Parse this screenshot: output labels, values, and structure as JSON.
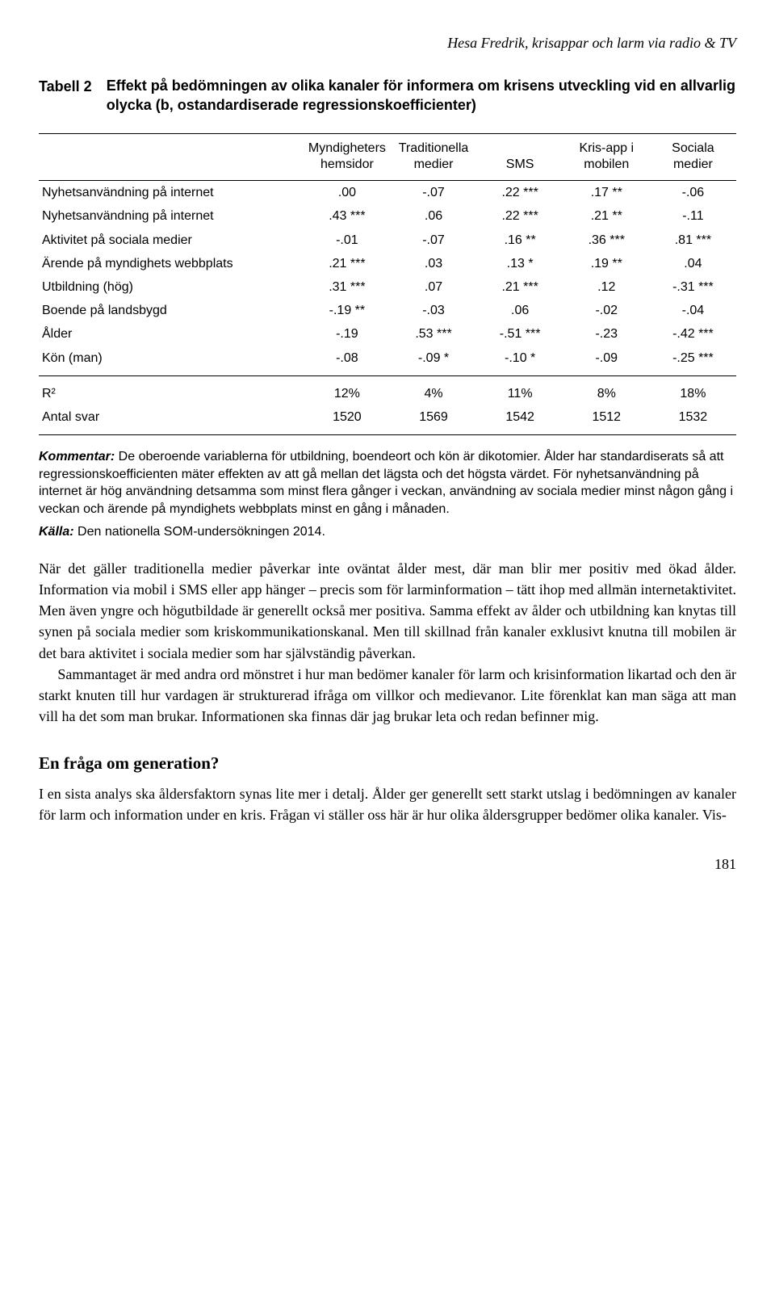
{
  "running_head": "Hesa Fredrik, krisappar och larm via radio & TV",
  "table": {
    "label": "Tabell 2",
    "title": "Effekt på bedömningen av olika kanaler för informera om krisens utveckling vid en allvarlig olycka (b, ostandardiserade regressionskoefficienter)",
    "columns": [
      "",
      "Myndigheters hemsidor",
      "Traditionella medier",
      "SMS",
      "Kris-app i mobilen",
      "Sociala medier"
    ],
    "rows": [
      [
        "Nyhetsanvändning på internet",
        ".00",
        "-.07",
        ".22 ***",
        ".17 **",
        "-.06"
      ],
      [
        "Nyhetsanvändning på internet",
        ".43 ***",
        ".06",
        ".22 ***",
        ".21 **",
        "-.11"
      ],
      [
        "Aktivitet på sociala medier",
        "-.01",
        "-.07",
        ".16 **",
        ".36 ***",
        ".81 ***"
      ],
      [
        "Ärende på myndighets webbplats",
        ".21 ***",
        ".03",
        ".13 *",
        ".19 **",
        ".04"
      ],
      [
        "Utbildning (hög)",
        ".31 ***",
        ".07",
        ".21 ***",
        ".12",
        "-.31 ***"
      ],
      [
        "Boende på landsbygd",
        "-.19 **",
        "-.03",
        ".06",
        "-.02",
        "-.04"
      ],
      [
        "Ålder",
        "-.19",
        ".53 ***",
        "-.51 ***",
        "-.23",
        "-.42 ***"
      ],
      [
        "Kön (man)",
        "-.08",
        "-.09 *",
        "-.10 *",
        "-.09",
        "-.25 ***"
      ]
    ],
    "footer_rows": [
      [
        "R²",
        "12%",
        "4%",
        "11%",
        "8%",
        "18%"
      ],
      [
        "Antal svar",
        "1520",
        "1569",
        "1542",
        "1512",
        "1532"
      ]
    ]
  },
  "kommentar_label": "Kommentar:",
  "kommentar_text": " De oberoende variablerna för utbildning, boendeort och kön är dikotomier. Ålder har standardiserats så att regressionskoefficienten mäter effekten av att gå mellan det lägsta och det högsta värdet. För nyhetsanvändning på internet är hög användning detsamma som minst flera gånger i veckan, användning av sociala medier minst någon gång i veckan och ärende på myndighets webbplats minst en gång i månaden.",
  "kalla_label": "Källa:",
  "kalla_text": " Den nationella SOM-undersökningen 2014.",
  "para1": "När det gäller traditionella medier påverkar inte oväntat ålder mest, där man blir mer positiv med ökad ålder. Information via mobil i SMS eller app hänger – precis som för larminformation – tätt ihop med allmän internetaktivitet. Men även yngre och högutbildade är generellt också mer positiva. Samma effekt av ålder och utbildning kan knytas till synen på sociala medier som kriskommunikationskanal. Men till skillnad från kanaler exklusivt knutna till mobilen är det bara aktivitet i sociala medier som har självständig påverkan.",
  "para2": "Sammantaget är med andra ord mönstret i hur man bedömer kanaler för larm och krisinformation likartad och den är starkt knuten till hur vardagen är strukturerad ifråga om villkor och medievanor. Lite förenklat kan man säga att man vill ha det som man brukar. Informationen ska finnas där jag brukar leta och redan befinner mig.",
  "section_heading": "En fråga om generation?",
  "para3": "I en sista analys ska åldersfaktorn synas lite mer i detalj. Ålder ger generellt sett starkt utslag i bedömningen av kanaler för larm och information under en kris. Frågan vi ställer oss här är hur olika åldersgrupper bedömer olika kanaler. Vis-",
  "page_number": "181"
}
